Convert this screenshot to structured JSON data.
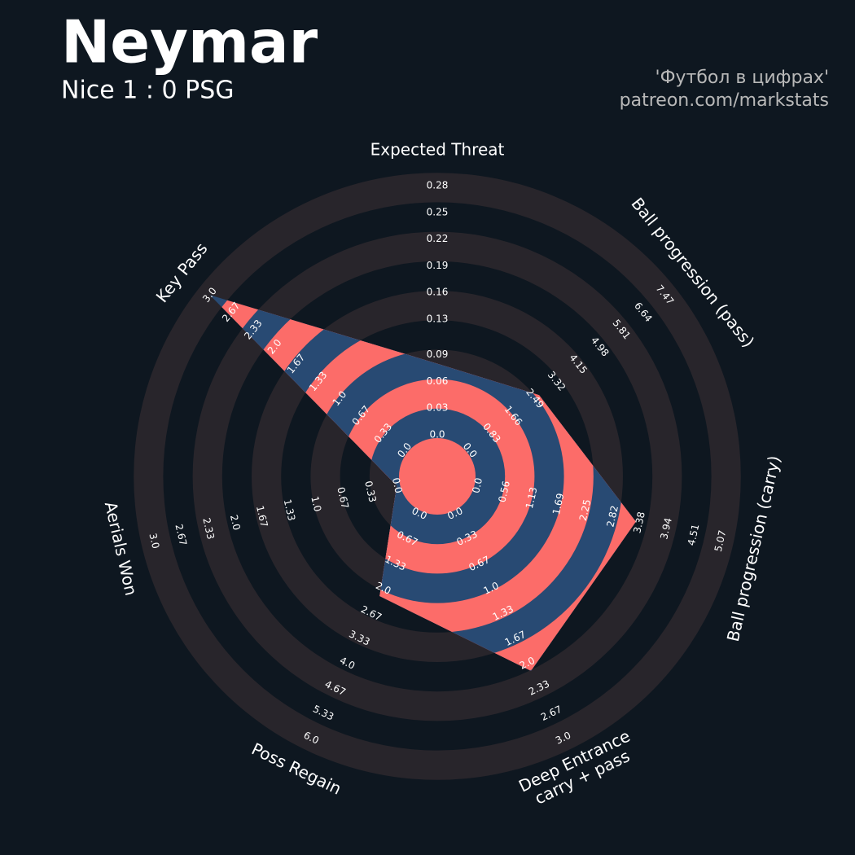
{
  "chart_data": {
    "type": "radar",
    "title": "Neymar",
    "subtitle": "Nice 1 : 0 PSG",
    "credits": [
      "'Футбол в цифрах'",
      "patreon.com/markstats"
    ],
    "categories": [
      "Expected Threat",
      "Ball progression (pass)",
      "Ball progression (carry)",
      "Deep Entrance\ncarry + pass",
      "Poss Regain",
      "Aerials Won",
      "Key Pass"
    ],
    "values": [
      0.08,
      2.66,
      3.3,
      2.1,
      2.2,
      0,
      3
    ],
    "axes": [
      {
        "lim": [
          0,
          0.28
        ],
        "ticks": [
          {
            "value": 0,
            "label": "0.0"
          },
          0.03,
          0.06,
          0.09,
          0.13,
          0.16,
          0.19,
          0.22,
          0.25,
          0.28
        ]
      },
      {
        "lim": [
          0,
          7.47
        ],
        "ticks": [
          {
            "value": 0,
            "label": "0.0"
          },
          0.83,
          1.66,
          2.49,
          3.32,
          4.15,
          4.98,
          5.81,
          6.64,
          7.47
        ]
      },
      {
        "lim": [
          0,
          5.07
        ],
        "ticks": [
          {
            "value": 0,
            "label": "0.0"
          },
          0.56,
          1.13,
          1.69,
          2.25,
          2.82,
          3.38,
          3.94,
          4.51,
          5.07
        ]
      },
      {
        "lim": [
          0,
          3
        ],
        "ticks": [
          {
            "value": 0,
            "label": "0.0"
          },
          0.33,
          0.67,
          {
            "value": 1,
            "label": "1.0"
          },
          1.33,
          1.67,
          {
            "value": 2,
            "label": "2.0"
          },
          2.33,
          2.67,
          {
            "value": 3,
            "label": "3.0"
          }
        ]
      },
      {
        "lim": [
          0,
          6
        ],
        "ticks": [
          {
            "value": 0,
            "label": "0.0"
          },
          0.67,
          1.33,
          {
            "value": 2,
            "label": "2.0"
          },
          2.67,
          3.33,
          {
            "value": 4,
            "label": "4.0"
          },
          4.67,
          5.33,
          {
            "value": 6,
            "label": "6.0"
          }
        ]
      },
      {
        "lim": [
          0,
          3
        ],
        "ticks": [
          {
            "value": 0,
            "label": "0.0"
          },
          0.33,
          0.67,
          {
            "value": 1,
            "label": "1.0"
          },
          1.33,
          1.67,
          {
            "value": 2,
            "label": "2.0"
          },
          2.33,
          2.67,
          {
            "value": 3,
            "label": "3.0"
          }
        ]
      },
      {
        "lim": [
          0,
          3
        ],
        "ticks": [
          {
            "value": 0,
            "label": "0.0"
          },
          0.33,
          0.67,
          {
            "value": 1,
            "label": "1.0"
          },
          1.33,
          1.67,
          {
            "value": 2,
            "label": "2.0"
          },
          2.33,
          2.67,
          {
            "value": 3,
            "label": "3.0"
          }
        ]
      }
    ],
    "colors": {
      "background": "#0e1720",
      "ring_light": "#28252b",
      "poly_light": "#fc6c69",
      "poly_dark": "#284a73"
    }
  }
}
